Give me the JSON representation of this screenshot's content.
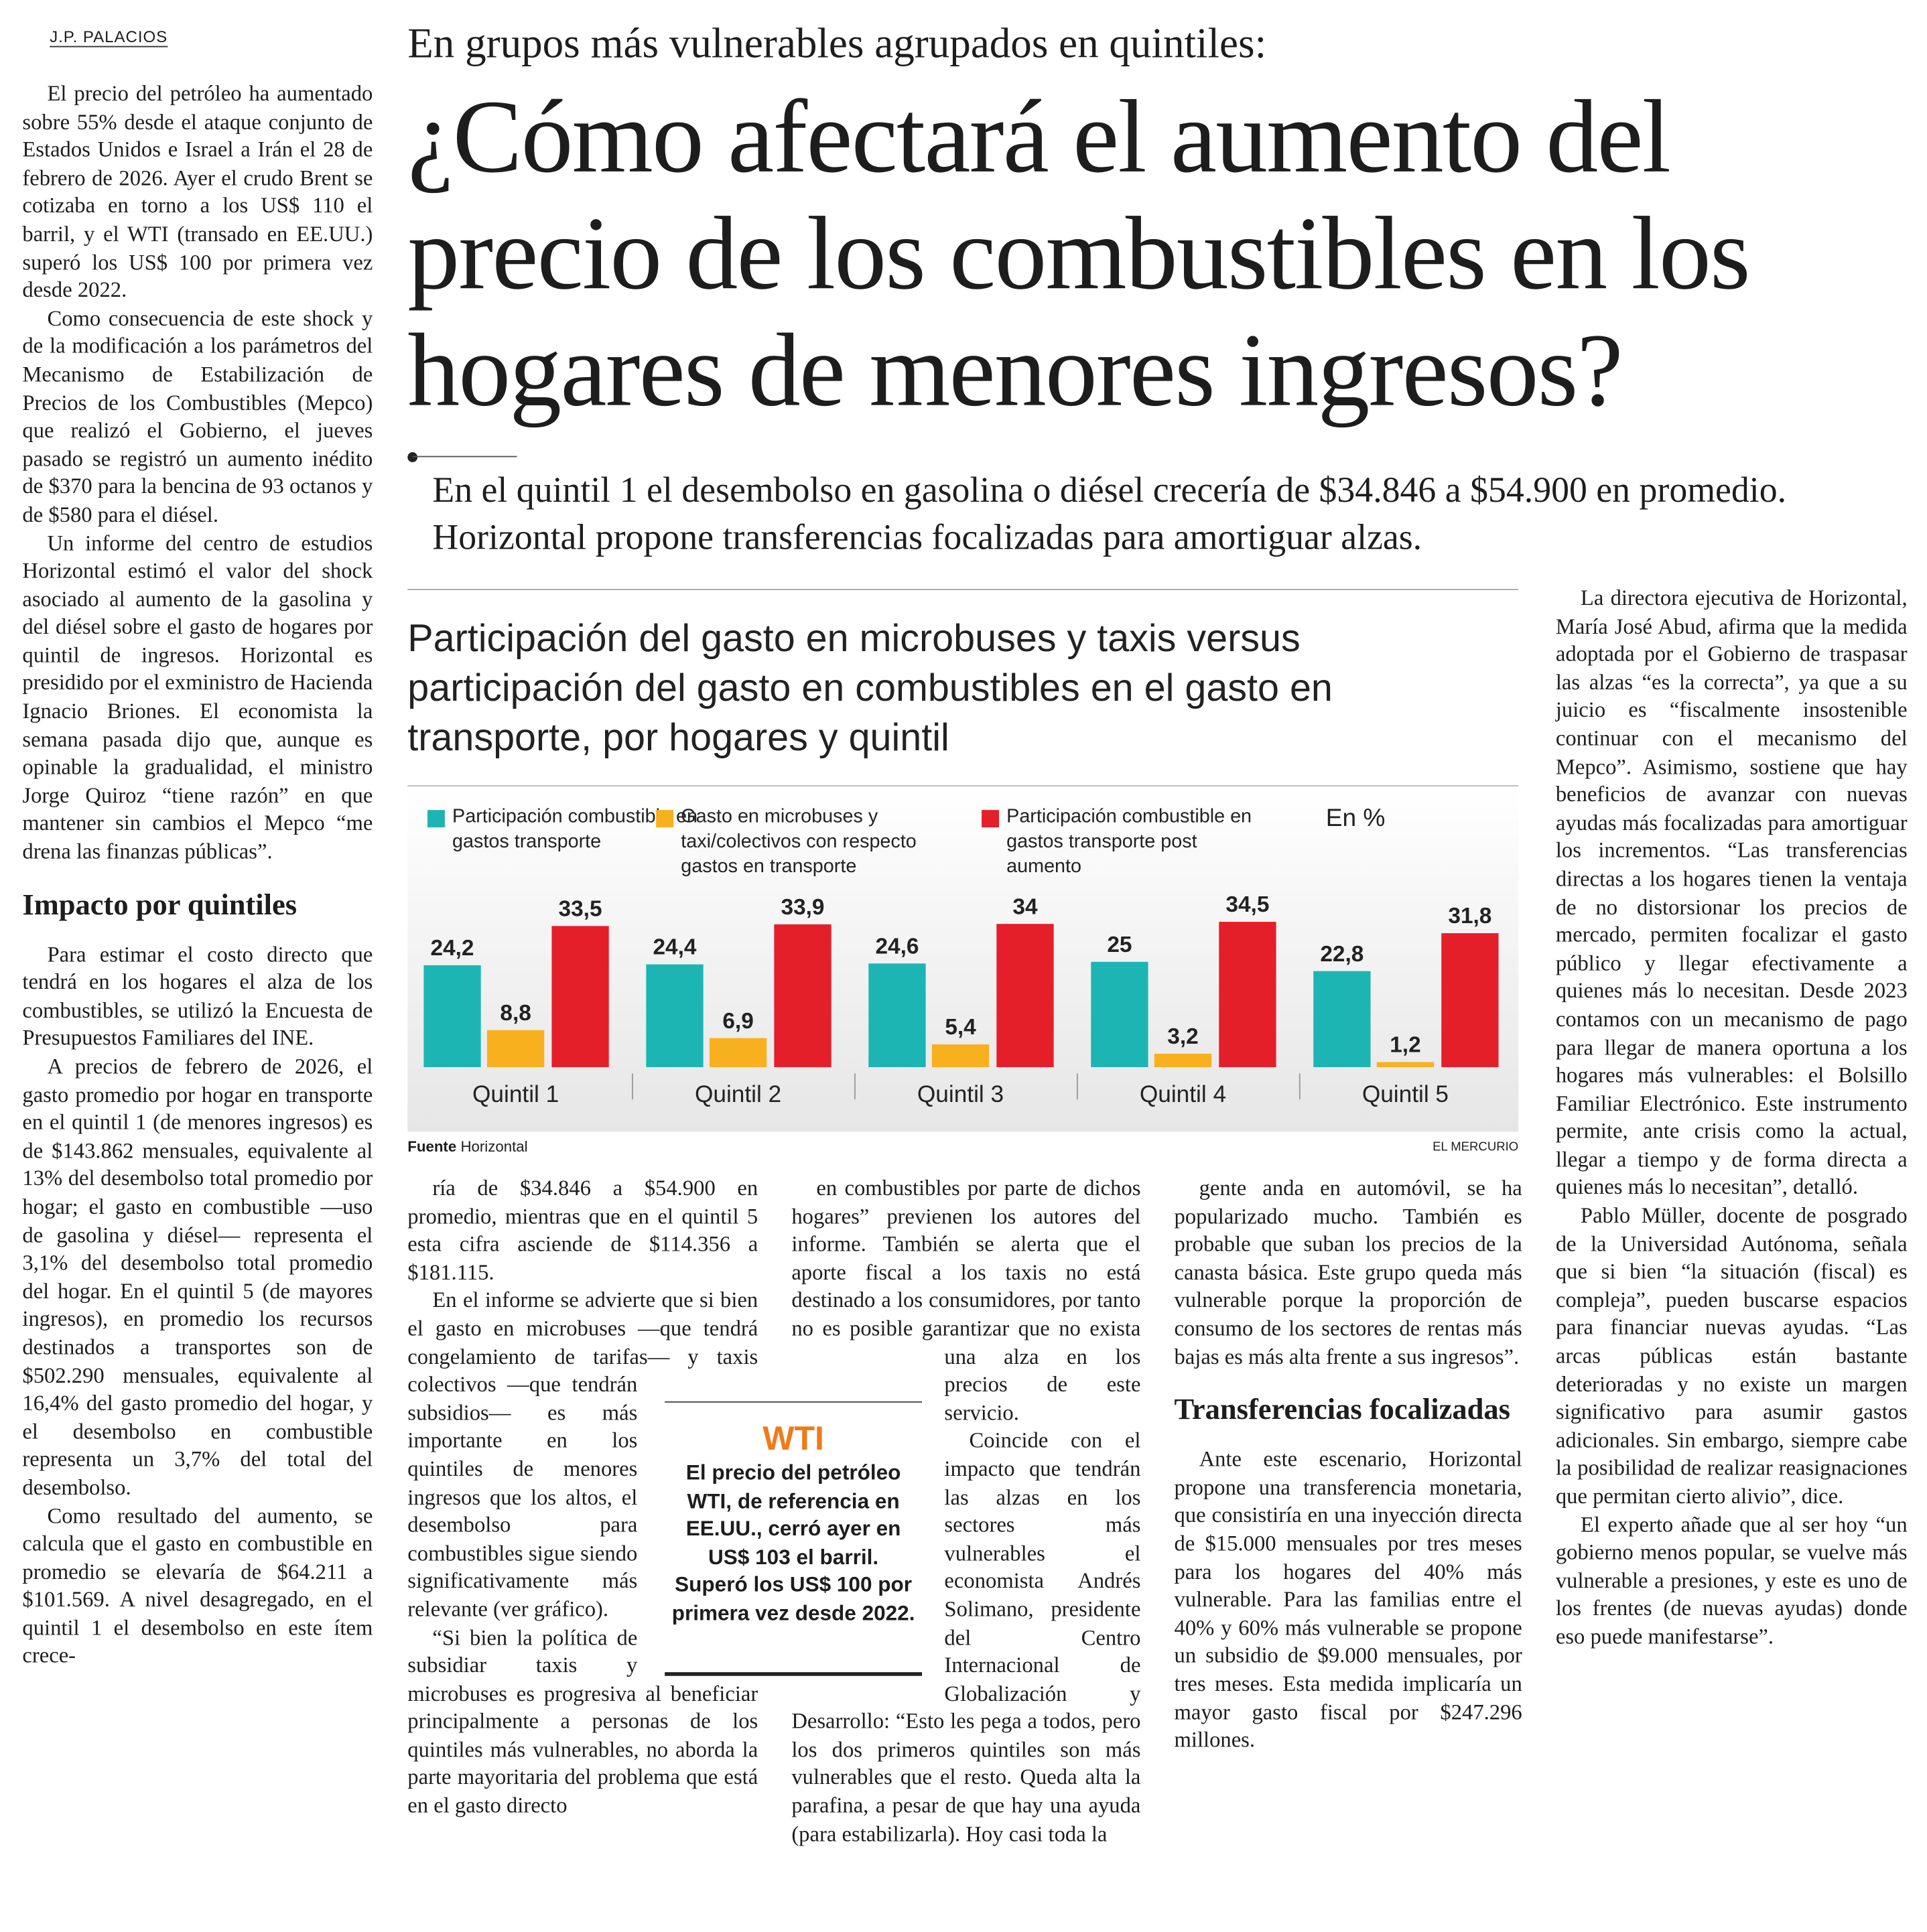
{
  "byline": "J.P. PALACIOS",
  "kicker": "En grupos más vulnerables agrupados en quintiles:",
  "headline": "¿Cómo afectará el aumento del precio de los combustibles en los hogares de menores ingresos?",
  "deck": "En el quintil 1 el desembolso en gasolina o diésel crecería de $34.846 a $54.900 en promedio. Horizontal propone transferencias focalizadas para amortiguar alzas.",
  "columns": [
    [
      {
        "text": "El precio del petróleo ha aumentado sobre 55% desde el ataque conjunto de Estados Unidos e Israel a Irán el 28 de febrero de 2026. Ayer el crudo Brent se cotizaba en torno a los US$ 110 el barril, y el WTI (transado en EE.UU.) superó los US$ 100 por primera vez desde 2022."
      },
      {
        "text": "Como consecuencia de este shock y de la modificación a los parámetros del Mecanismo de Estabilización de Precios de los Combustibles (Mepco) que realizó el Gobierno, el jueves pasado se registró un aumento inédito de $370 para la bencina de 93 octanos y de $580 para el diésel."
      },
      {
        "text": "Un informe del centro de estudios Horizontal estimó el valor del shock asociado al aumento de la gasolina y del diésel sobre el gasto de hogares por quintil de ingresos. Horizontal es presidido por el exministro de Hacienda Ignacio Briones. El economista la semana pasada dijo que, aunque es opinable la gradualidad, el ministro Jorge Quiroz “tiene razón” en que mantener sin cambios el Mepco “me drena las finanzas públicas”."
      },
      {
        "heading": "Impacto por quintiles"
      },
      {
        "text": "Para estimar el costo directo que tendrá en los hogares el alza de los combustibles, se utilizó la Encuesta de Presupuestos Familiares del INE."
      },
      {
        "text": "A precios de febrero de 2026, el gasto promedio por hogar en transporte en el quintil 1 (de menores ingresos) es de $143.862 mensuales, equivalente al 13% del desembolso total promedio por hogar; el gasto en combustible —uso de gasolina y diésel— representa el 3,1% del desembolso total promedio del hogar. En el quintil 5 (de mayores ingresos), en promedio los recursos destinados a transportes son de $502.290 mensuales, equivalente al 16,4% del gasto promedio del hogar, y el desembolso en combustible representa un 3,7% del total del desembolso."
      },
      {
        "text": "Como resultado del aumento, se calcula que el gasto en combustible en promedio se elevaría de $64.211 a $101.569. A nivel desagregado, en el quintil 1 el desembolso en este ítem crece-"
      }
    ],
    [
      {
        "text": "ría de $34.846 a $54.900 en promedio, mientras que en el quintil 5 esta cifra asciende de $114.356 a $181.115."
      },
      {
        "text": "En el informe se advierte que si bien el gasto en microbuses —que tendrá congelamiento de tarifas— y taxis colectivos —que tendrán subsidios— es más importante en los quintiles de menores ingresos que los altos, el desembolso para combustibles sigue siendo significativamente más relevante (ver gráfico)."
      },
      {
        "text": "“Si bien la política de subsidiar taxis y microbuses es progresiva al beneficiar principalmente a personas de los quintiles más vulnerables, no aborda la parte mayoritaria del problema que está en el gasto directo"
      }
    ],
    [
      {
        "text": "en combustibles por parte de dichos hogares” previenen los autores del informe. También se alerta que el aporte fiscal a los taxis no está destinado a los consumidores, por tanto no es posible garantizar que no exista una alza en los precios de este servicio."
      },
      {
        "text": "Coincide con el impacto que tendrán las alzas en los sectores más vulnerables el economista Andrés Solimano, presidente del Centro Internacional de Globalización y Desarrollo: “Esto les pega a todos, pero los dos primeros quintiles son más vulnerables que el resto. Queda alta la parafina, a pesar de que hay una ayuda (para estabilizarla). Hoy casi toda la"
      }
    ],
    [
      {
        "text": "gente anda en automóvil, se ha popularizado mucho. También es probable que suban los precios de la canasta básica. Este grupo queda más vulnerable porque la proporción de consumo de los sectores de rentas más bajas es más alta frente a sus ingresos”."
      },
      {
        "heading": "Transferencias focalizadas"
      },
      {
        "text": "Ante este escenario, Horizontal propone una transferencia monetaria, que consistiría en una inyección directa de $15.000 mensuales por tres meses para los hogares del 40% más vulnerable. Para las familias entre el 40% y 60% más vulnerable se propone un subsidio de $9.000 mensuales, por tres meses. Esta medida implicaría un mayor gasto fiscal por $247.296 millones."
      }
    ],
    [
      {
        "text": "La directora ejecutiva de Horizontal, María José Abud, afirma que la medida adoptada por el Gobierno de traspasar las alzas “es la correcta”, ya que a su juicio es “fiscalmente insostenible continuar con el mecanismo del Mepco”. Asimismo, sostiene que hay beneficios de avanzar con nuevas ayudas más focalizadas para amortiguar los incrementos. “Las transferencias directas a los hogares tienen la ventaja de no distorsionar los precios de mercado, permiten focalizar el gasto público y llegar efectivamente a quienes más lo necesitan. Desde 2023 contamos con un mecanismo de pago para llegar de manera oportuna a los hogares más vulnerables: el Bolsillo Familiar Electrónico. Este instrumento permite, ante crisis como la actual, llegar a tiempo y de forma directa a quienes más lo necesitan”, detalló."
      },
      {
        "text": "Pablo Müller, docente de posgrado de la Universidad Autónoma, señala que si bien “la situación (fiscal) es compleja”, pueden buscarse espacios para financiar nuevas ayudas. “Las arcas públicas están bastante deterioradas y no existe un margen significativo para asumir gastos adicionales. Sin embargo, siempre cabe la posibilidad de realizar reasignaciones que permitan cierto alivio”, dice."
      },
      {
        "text": "El experto añade que al ser hoy “un gobierno menos popular, se vuelve más vulnerable a presiones, y este es uno de los frentes (de nuevas ayudas) donde eso puede manifestarse”."
      }
    ]
  ],
  "wti_box": {
    "label": "WTI",
    "text": "El precio del petróleo WTI, de referencia en EE.UU., cerró ayer en US$ 103 el barril. Superó los US$ 100 por primera vez desde 2022."
  },
  "chart_data": {
    "type": "bar",
    "title": "Participación del gasto en microbuses y taxis versus participación del gasto en combustibles en el gasto en transporte, por hogares y quintil",
    "unit_note": "En %",
    "categories": [
      "Quintil 1",
      "Quintil 2",
      "Quintil 3",
      "Quintil 4",
      "Quintil 5"
    ],
    "series": [
      {
        "name": "Participación combustible en gastos transporte",
        "color": "#1db5b3",
        "values": [
          24.2,
          24.4,
          24.6,
          25,
          22.8
        ],
        "value_labels": [
          "24,2",
          "24,4",
          "24,6",
          "25",
          "22,8"
        ]
      },
      {
        "name": "Gasto en microbuses y taxi/colectivos con respecto gastos en transporte",
        "color": "#f8b01e",
        "values": [
          8.8,
          6.9,
          5.4,
          3.2,
          1.2
        ],
        "value_labels": [
          "8,8",
          "6,9",
          "5,4",
          "3,2",
          "1,2"
        ]
      },
      {
        "name": "Participación combustible en gastos transporte post aumento",
        "color": "#e41f2a",
        "values": [
          33.5,
          33.9,
          34,
          34.5,
          31.8
        ],
        "value_labels": [
          "33,5",
          "33,9",
          "34",
          "34,5",
          "31,8"
        ]
      }
    ],
    "source_label": "Fuente",
    "source": "Horizontal",
    "credit": "EL MERCURIO"
  }
}
